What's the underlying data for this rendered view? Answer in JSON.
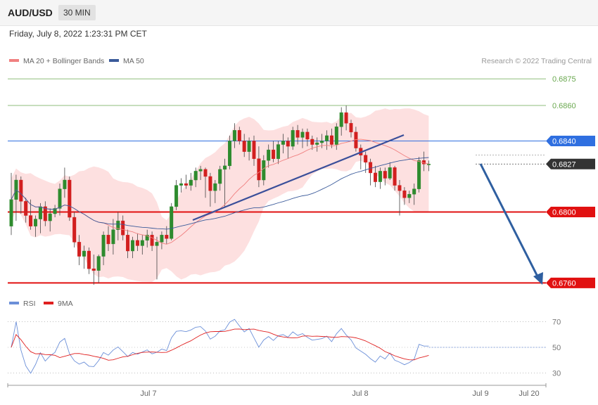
{
  "header": {
    "symbol": "AUD/USD",
    "timeframe": "30 MIN",
    "datetime": "Friday, July 8, 2022 1:23:31 PM CET"
  },
  "legend": {
    "ma20": "MA 20 + Bollinger Bands",
    "ma50": "MA 50",
    "rsi": "RSI",
    "rsi_ma": "9MA"
  },
  "credit": "Research © 2022 Trading Central",
  "colors": {
    "up": "#2e8b2e",
    "down": "#d21f1f",
    "bollinger": "#fddada",
    "ma20": "#f08080",
    "ma50": "#3a5a9a",
    "rsi": "#6b8fd8",
    "rsi_ma": "#e02020",
    "arrow": "#2f5fa0",
    "support": "#e11111",
    "resistance": "#6aa84f",
    "level_blue": "#2f6fe0",
    "price_tag": "#333333"
  },
  "chart_data": {
    "type": "candlestick",
    "ylim": [
      0.6757,
      0.6881
    ],
    "x_ticks": [
      "Jul 7",
      "Jul 8",
      "Jul 9",
      "Jul 20"
    ],
    "levels": [
      {
        "value": 0.6875,
        "label": "0.6875",
        "style": "resistance"
      },
      {
        "value": 0.686,
        "label": "0.6860",
        "style": "resistance"
      },
      {
        "value": 0.684,
        "label": "0.6840",
        "style": "blue"
      },
      {
        "value": 0.6827,
        "label": "0.6827",
        "style": "last"
      },
      {
        "value": 0.68,
        "label": "0.6800",
        "style": "support"
      },
      {
        "value": 0.676,
        "label": "0.6760",
        "style": "support"
      }
    ],
    "candles": [
      [
        0.6792,
        0.6822,
        0.6787,
        0.6807
      ],
      [
        0.6807,
        0.6821,
        0.6795,
        0.6818
      ],
      [
        0.6818,
        0.682,
        0.6799,
        0.6806
      ],
      [
        0.6806,
        0.6808,
        0.6794,
        0.6798
      ],
      [
        0.6798,
        0.6807,
        0.679,
        0.6792
      ],
      [
        0.6792,
        0.6798,
        0.6786,
        0.6796
      ],
      [
        0.6796,
        0.6805,
        0.6788,
        0.6803
      ],
      [
        0.6803,
        0.6806,
        0.6792,
        0.6795
      ],
      [
        0.6795,
        0.6802,
        0.6789,
        0.6799
      ],
      [
        0.6799,
        0.6804,
        0.6797,
        0.6802
      ],
      [
        0.6802,
        0.6816,
        0.6798,
        0.6813
      ],
      [
        0.6813,
        0.6825,
        0.6808,
        0.6818
      ],
      [
        0.6818,
        0.682,
        0.6795,
        0.6797
      ],
      [
        0.6797,
        0.68,
        0.678,
        0.6783
      ],
      [
        0.6783,
        0.6787,
        0.677,
        0.6775
      ],
      [
        0.6775,
        0.6781,
        0.6768,
        0.6778
      ],
      [
        0.6778,
        0.678,
        0.6765,
        0.6768
      ],
      [
        0.6768,
        0.6776,
        0.6759,
        0.6767
      ],
      [
        0.6767,
        0.6776,
        0.676,
        0.6775
      ],
      [
        0.6775,
        0.6789,
        0.677,
        0.6787
      ],
      [
        0.6787,
        0.6792,
        0.6778,
        0.6782
      ],
      [
        0.6782,
        0.6796,
        0.6776,
        0.679
      ],
      [
        0.679,
        0.68,
        0.6784,
        0.6795
      ],
      [
        0.6795,
        0.6798,
        0.6784,
        0.6787
      ],
      [
        0.6787,
        0.679,
        0.6774,
        0.6778
      ],
      [
        0.6778,
        0.6786,
        0.6774,
        0.6784
      ],
      [
        0.6784,
        0.6788,
        0.6778,
        0.6781
      ],
      [
        0.6781,
        0.6787,
        0.6776,
        0.6784
      ],
      [
        0.6784,
        0.679,
        0.678,
        0.6787
      ],
      [
        0.6787,
        0.6789,
        0.6778,
        0.6781
      ],
      [
        0.6781,
        0.6786,
        0.6762,
        0.6783
      ],
      [
        0.6783,
        0.6789,
        0.6779,
        0.6787
      ],
      [
        0.6787,
        0.6792,
        0.6782,
        0.6785
      ],
      [
        0.6785,
        0.6805,
        0.6784,
        0.6803
      ],
      [
        0.6803,
        0.6818,
        0.6801,
        0.6815
      ],
      [
        0.6815,
        0.6819,
        0.6811,
        0.6816
      ],
      [
        0.6816,
        0.6821,
        0.6813,
        0.6815
      ],
      [
        0.6815,
        0.6822,
        0.6812,
        0.6818
      ],
      [
        0.6818,
        0.6825,
        0.6814,
        0.6823
      ],
      [
        0.6823,
        0.6826,
        0.6818,
        0.6824
      ],
      [
        0.6824,
        0.6825,
        0.6808,
        0.682
      ],
      [
        0.682,
        0.6822,
        0.6803,
        0.6812
      ],
      [
        0.6812,
        0.6818,
        0.6805,
        0.6816
      ],
      [
        0.6816,
        0.6826,
        0.6812,
        0.6824
      ],
      [
        0.6824,
        0.683,
        0.6803,
        0.6826
      ],
      [
        0.6826,
        0.6843,
        0.6824,
        0.684
      ],
      [
        0.684,
        0.685,
        0.6836,
        0.6846
      ],
      [
        0.6846,
        0.6848,
        0.6838,
        0.684
      ],
      [
        0.684,
        0.6844,
        0.6831,
        0.6834
      ],
      [
        0.6834,
        0.6842,
        0.6829,
        0.684
      ],
      [
        0.684,
        0.6843,
        0.6826,
        0.683
      ],
      [
        0.683,
        0.6837,
        0.6814,
        0.6818
      ],
      [
        0.6818,
        0.6832,
        0.6815,
        0.6829
      ],
      [
        0.6829,
        0.6838,
        0.6825,
        0.6835
      ],
      [
        0.6835,
        0.684,
        0.6828,
        0.683
      ],
      [
        0.683,
        0.684,
        0.6827,
        0.6838
      ],
      [
        0.6838,
        0.6844,
        0.6833,
        0.684
      ],
      [
        0.684,
        0.6842,
        0.683,
        0.6837
      ],
      [
        0.6837,
        0.6848,
        0.6835,
        0.6846
      ],
      [
        0.6846,
        0.6849,
        0.6838,
        0.6842
      ],
      [
        0.6842,
        0.6847,
        0.6836,
        0.6845
      ],
      [
        0.6845,
        0.6847,
        0.6837,
        0.6841
      ],
      [
        0.6841,
        0.6843,
        0.6835,
        0.6838
      ],
      [
        0.6838,
        0.6842,
        0.6834,
        0.6839
      ],
      [
        0.6839,
        0.6844,
        0.6836,
        0.684
      ],
      [
        0.684,
        0.6846,
        0.6835,
        0.6843
      ],
      [
        0.6843,
        0.6847,
        0.6836,
        0.6838
      ],
      [
        0.6838,
        0.685,
        0.6835,
        0.6848
      ],
      [
        0.6848,
        0.6859,
        0.6843,
        0.6856
      ],
      [
        0.6856,
        0.686,
        0.6846,
        0.685
      ],
      [
        0.685,
        0.6852,
        0.6842,
        0.6845
      ],
      [
        0.6845,
        0.6848,
        0.6834,
        0.6836
      ],
      [
        0.6836,
        0.6838,
        0.6824,
        0.6832
      ],
      [
        0.6832,
        0.6834,
        0.6822,
        0.6828
      ],
      [
        0.6828,
        0.683,
        0.6815,
        0.6822
      ],
      [
        0.6822,
        0.6826,
        0.6814,
        0.6817
      ],
      [
        0.6817,
        0.6825,
        0.6813,
        0.6823
      ],
      [
        0.6823,
        0.6825,
        0.6815,
        0.6819
      ],
      [
        0.6819,
        0.6828,
        0.6818,
        0.6825
      ],
      [
        0.6825,
        0.6826,
        0.6812,
        0.6815
      ],
      [
        0.6815,
        0.6818,
        0.6798,
        0.6812
      ],
      [
        0.6812,
        0.6814,
        0.6804,
        0.6808
      ],
      [
        0.6808,
        0.6812,
        0.6805,
        0.681
      ],
      [
        0.681,
        0.6816,
        0.6804,
        0.6813
      ],
      [
        0.6813,
        0.6831,
        0.6811,
        0.6829
      ],
      [
        0.6829,
        0.6834,
        0.6823,
        0.6827
      ],
      [
        0.6827,
        0.6829,
        0.6823,
        0.6827
      ]
    ],
    "rsi": {
      "ylim": [
        22,
        78
      ],
      "ticks": [
        70,
        50,
        30
      ],
      "signal_level": 50
    }
  }
}
